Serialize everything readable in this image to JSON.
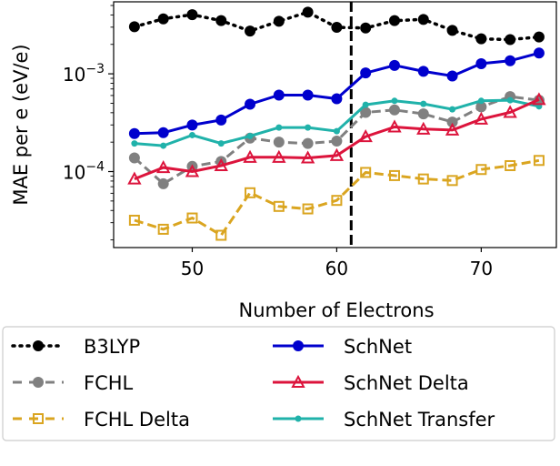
{
  "chart_data": {
    "type": "line",
    "title": "",
    "xlabel": "Number of Electrons",
    "ylabel": "MAE per e (eV/e)",
    "xlim": [
      44.56,
      75.2
    ],
    "ylim": [
      1.67e-05,
      0.00545
    ],
    "yscale": "log",
    "xticks": [
      50,
      60,
      70
    ],
    "xtick_labels": [
      "50",
      "60",
      "70"
    ],
    "yticks": [
      0.0001,
      0.001
    ],
    "ytick_labels": [
      {
        "base": "10",
        "exp": "−4"
      },
      {
        "base": "10",
        "exp": "−3"
      }
    ],
    "grid": false,
    "vline": {
      "x": 61,
      "color": "#000000",
      "style": "dashed"
    },
    "legend_placement": "below",
    "x": [
      46,
      48,
      50,
      52,
      54,
      56,
      58,
      60,
      62,
      64,
      66,
      68,
      70,
      72,
      74
    ],
    "series": [
      {
        "name": "B3LYP",
        "color": "#000000",
        "dash": "dotted",
        "marker": "circle",
        "values": [
          0.00303,
          0.00365,
          0.00403,
          0.0035,
          0.00274,
          0.00345,
          0.00427,
          0.00299,
          0.00294,
          0.0035,
          0.0036,
          0.00278,
          0.00228,
          0.00224,
          0.00238
        ]
      },
      {
        "name": "FCHL",
        "color": "#808080",
        "dash": "dashed",
        "marker": "circle",
        "values": [
          0.000138,
          7.5e-05,
          0.000113,
          0.000127,
          0.00022,
          0.0002,
          0.000194,
          0.000205,
          0.000403,
          0.000427,
          0.000389,
          0.000321,
          0.000459,
          0.000585,
          0.000537
        ]
      },
      {
        "name": "FCHL Delta",
        "color": "#DAA520",
        "dash": "dashed",
        "marker": "square-open",
        "values": [
          3.18e-05,
          2.57e-05,
          3.35e-05,
          2.23e-05,
          6.07e-05,
          4.4e-05,
          4.15e-05,
          5.07e-05,
          9.8e-05,
          9.1e-05,
          8.4e-05,
          8.1e-05,
          0.000105,
          0.000115,
          0.00013
        ]
      },
      {
        "name": "SchNet",
        "color": "#0000CD",
        "dash": "solid",
        "marker": "circle",
        "values": [
          0.000245,
          0.00025,
          0.000299,
          0.000337,
          0.000489,
          0.000606,
          0.000606,
          0.000556,
          0.00102,
          0.00122,
          0.00106,
          0.00095,
          0.00127,
          0.00136,
          0.00163
        ]
      },
      {
        "name": "SchNet Delta",
        "color": "#DC143C",
        "dash": "solid",
        "marker": "triangle-open",
        "values": [
          8.4e-05,
          0.00011,
          0.0001,
          0.000115,
          0.00014,
          0.00014,
          0.000138,
          0.000146,
          0.000228,
          0.000286,
          0.000272,
          0.000266,
          0.000344,
          0.000403,
          0.000545
        ]
      },
      {
        "name": "SchNet Transfer",
        "color": "#20B2AA",
        "dash": "solid",
        "marker": "point",
        "values": [
          0.000194,
          0.000184,
          0.000236,
          0.000194,
          0.000231,
          0.000282,
          0.000282,
          0.000259,
          0.000482,
          0.000529,
          0.000493,
          0.000433,
          0.000529,
          0.000537,
          0.000465
        ]
      }
    ]
  }
}
